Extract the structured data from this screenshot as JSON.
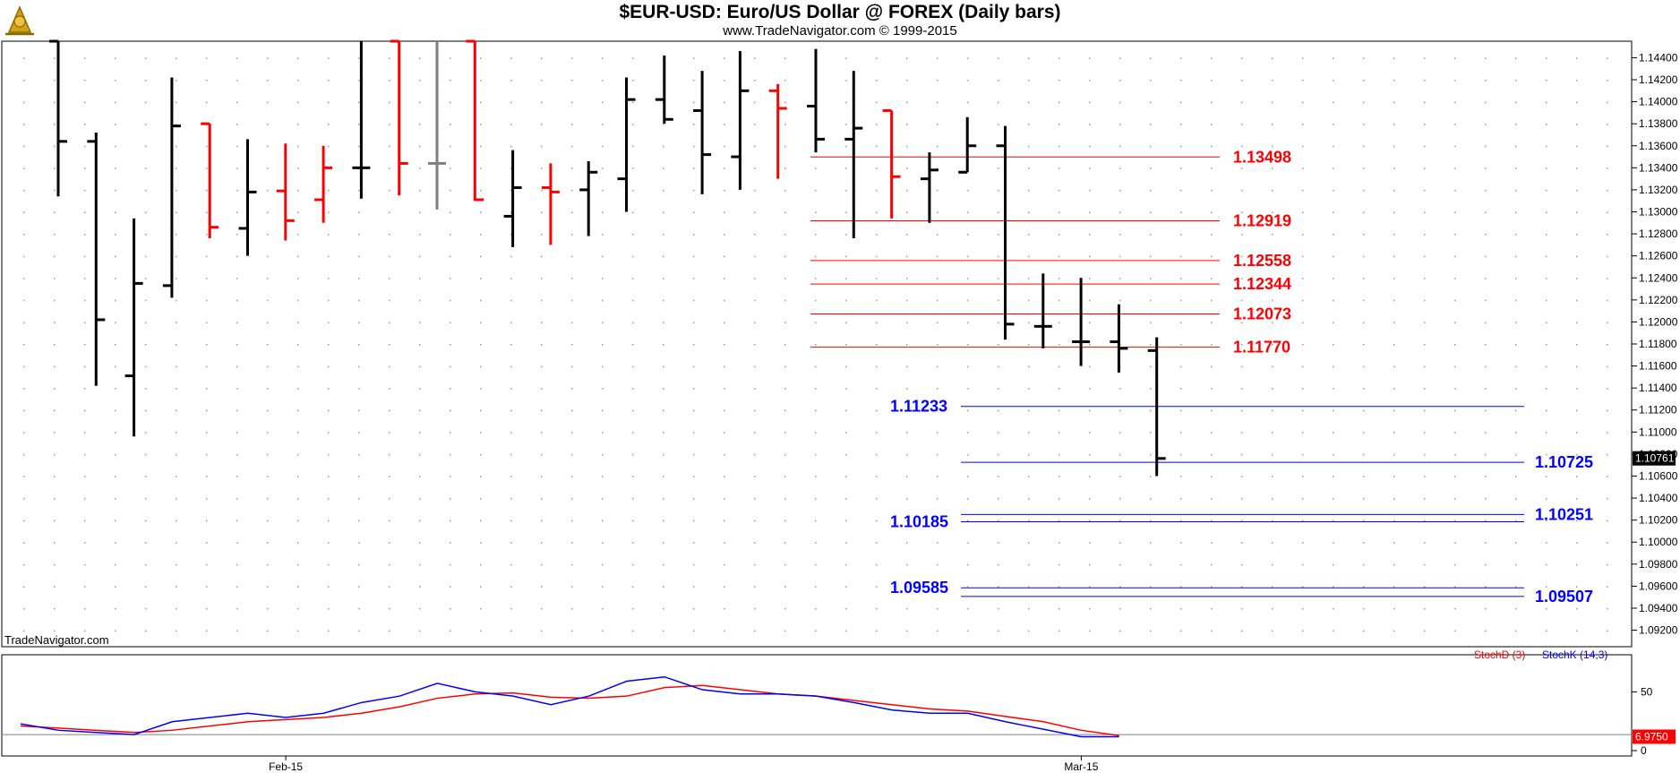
{
  "header": {
    "title": "$EUR-USD:  Euro/US Dollar @ FOREX  (Daily bars)",
    "subtitle": "www.TradeNavigator.com © 1999-2015",
    "logo_icon": "sextant-logo-icon"
  },
  "watermark": "TradeNavigator.com",
  "colors": {
    "up": "#000000",
    "down": "#ff0000",
    "neutral": "#808080",
    "level_red": "#ff0000",
    "level_blue": "#0000ff",
    "stochD": "#ff0000",
    "stochK": "#0000ff"
  },
  "indicator_legend": {
    "stochD": "StochD (3)",
    "stochK": "StochK (14,3)"
  },
  "chart_data": [
    {
      "type": "ohlc",
      "title": "$EUR-USD:  Euro/US Dollar @ FOREX  (Daily bars)",
      "x_labels": [
        "Feb-15",
        "Mar-15"
      ],
      "x_label_bar_index": [
        7,
        28
      ],
      "ylim": [
        1.0905,
        1.1455
      ],
      "y_ticks": [
        "1.14400",
        "1.14200",
        "1.14000",
        "1.13800",
        "1.13600",
        "1.13400",
        "1.13200",
        "1.13000",
        "1.12800",
        "1.12600",
        "1.12400",
        "1.12200",
        "1.12000",
        "1.11800",
        "1.11600",
        "1.11400",
        "1.11200",
        "1.11000",
        "1.10800",
        "1.10600",
        "1.10400",
        "1.10200",
        "1.10000",
        "1.09800",
        "1.09600",
        "1.09400",
        "1.09200"
      ],
      "last_price": "1.10761",
      "bars": [
        {
          "o": 1.1455,
          "h": 1.1455,
          "l": 1.1314,
          "c": 1.1364,
          "color": "up"
        },
        {
          "o": 1.1364,
          "h": 1.1372,
          "l": 1.1142,
          "c": 1.1202,
          "color": "up"
        },
        {
          "o": 1.1151,
          "h": 1.1294,
          "l": 1.1096,
          "c": 1.1235,
          "color": "up"
        },
        {
          "o": 1.1233,
          "h": 1.1422,
          "l": 1.1222,
          "c": 1.1378,
          "color": "up"
        },
        {
          "o": 1.138,
          "h": 1.138,
          "l": 1.1276,
          "c": 1.1286,
          "color": "down"
        },
        {
          "o": 1.1285,
          "h": 1.1366,
          "l": 1.126,
          "c": 1.1318,
          "color": "up"
        },
        {
          "o": 1.1319,
          "h": 1.1362,
          "l": 1.1274,
          "c": 1.1292,
          "color": "down"
        },
        {
          "o": 1.1311,
          "h": 1.136,
          "l": 1.129,
          "c": 1.134,
          "color": "down"
        },
        {
          "o": 1.134,
          "h": 1.1455,
          "l": 1.1312,
          "c": 1.134,
          "color": "up"
        },
        {
          "o": 1.1455,
          "h": 1.1455,
          "l": 1.1315,
          "c": 1.1344,
          "color": "down"
        },
        {
          "o": 1.1344,
          "h": 1.1455,
          "l": 1.1302,
          "c": 1.1344,
          "color": "neutral"
        },
        {
          "o": 1.1455,
          "h": 1.1455,
          "l": 1.131,
          "c": 1.1311,
          "color": "down"
        },
        {
          "o": 1.1296,
          "h": 1.1356,
          "l": 1.1268,
          "c": 1.1322,
          "color": "up"
        },
        {
          "o": 1.1322,
          "h": 1.1344,
          "l": 1.127,
          "c": 1.1318,
          "color": "down"
        },
        {
          "o": 1.132,
          "h": 1.1346,
          "l": 1.1278,
          "c": 1.1336,
          "color": "up"
        },
        {
          "o": 1.133,
          "h": 1.1422,
          "l": 1.13,
          "c": 1.1402,
          "color": "up"
        },
        {
          "o": 1.1402,
          "h": 1.1442,
          "l": 1.138,
          "c": 1.1384,
          "color": "up"
        },
        {
          "o": 1.1392,
          "h": 1.1428,
          "l": 1.1316,
          "c": 1.1352,
          "color": "up"
        },
        {
          "o": 1.135,
          "h": 1.1446,
          "l": 1.132,
          "c": 1.141,
          "color": "up"
        },
        {
          "o": 1.141,
          "h": 1.1416,
          "l": 1.133,
          "c": 1.1394,
          "color": "down"
        },
        {
          "o": 1.1396,
          "h": 1.1448,
          "l": 1.1354,
          "c": 1.1366,
          "color": "up"
        },
        {
          "o": 1.1366,
          "h": 1.1428,
          "l": 1.1276,
          "c": 1.1376,
          "color": "up"
        },
        {
          "o": 1.1392,
          "h": 1.1392,
          "l": 1.1294,
          "c": 1.1332,
          "color": "down"
        },
        {
          "o": 1.133,
          "h": 1.1354,
          "l": 1.129,
          "c": 1.1338,
          "color": "up"
        },
        {
          "o": 1.1336,
          "h": 1.1386,
          "l": 1.1336,
          "c": 1.136,
          "color": "up"
        },
        {
          "o": 1.136,
          "h": 1.1378,
          "l": 1.1184,
          "c": 1.1198,
          "color": "up"
        },
        {
          "o": 1.1196,
          "h": 1.1244,
          "l": 1.1176,
          "c": 1.1196,
          "color": "up"
        },
        {
          "o": 1.1182,
          "h": 1.124,
          "l": 1.116,
          "c": 1.1182,
          "color": "up"
        },
        {
          "o": 1.1182,
          "h": 1.1216,
          "l": 1.1154,
          "c": 1.1176,
          "color": "up"
        },
        {
          "o": 1.1174,
          "h": 1.1186,
          "l": 1.106,
          "c": 1.1076,
          "color": "up"
        }
      ],
      "levels_red": [
        "1.13498",
        "1.12919",
        "1.12558",
        "1.12344",
        "1.12073",
        "1.11770"
      ],
      "levels_blue_left": [
        "1.11233",
        "1.10185",
        "1.09585"
      ],
      "levels_blue_right": [
        "1.10725",
        "1.10251",
        "1.09507"
      ]
    },
    {
      "type": "line",
      "title": "",
      "y_ticks": [
        "50",
        "0"
      ],
      "last_value": "6.9750",
      "x": [
        0,
        1,
        2,
        3,
        4,
        5,
        6,
        7,
        8,
        9,
        10,
        11,
        12,
        13,
        14,
        15,
        16,
        17,
        18,
        19,
        20,
        21,
        22,
        23,
        24,
        25,
        26,
        27,
        28,
        29
      ],
      "series": [
        {
          "name": "StochD (3)",
          "values": [
            18,
            16,
            14,
            12,
            14,
            18,
            22,
            24,
            26,
            30,
            36,
            44,
            48,
            49,
            45,
            44,
            46,
            54,
            56,
            52,
            48,
            46,
            42,
            38,
            34,
            32,
            27,
            22,
            14,
            9
          ]
        },
        {
          "name": "StochK (14,3)",
          "values": [
            20,
            14,
            12,
            10,
            22,
            26,
            30,
            26,
            30,
            40,
            46,
            58,
            50,
            46,
            38,
            46,
            60,
            64,
            52,
            48,
            48,
            46,
            40,
            33,
            30,
            30,
            22,
            15,
            8,
            8
          ]
        }
      ]
    }
  ]
}
